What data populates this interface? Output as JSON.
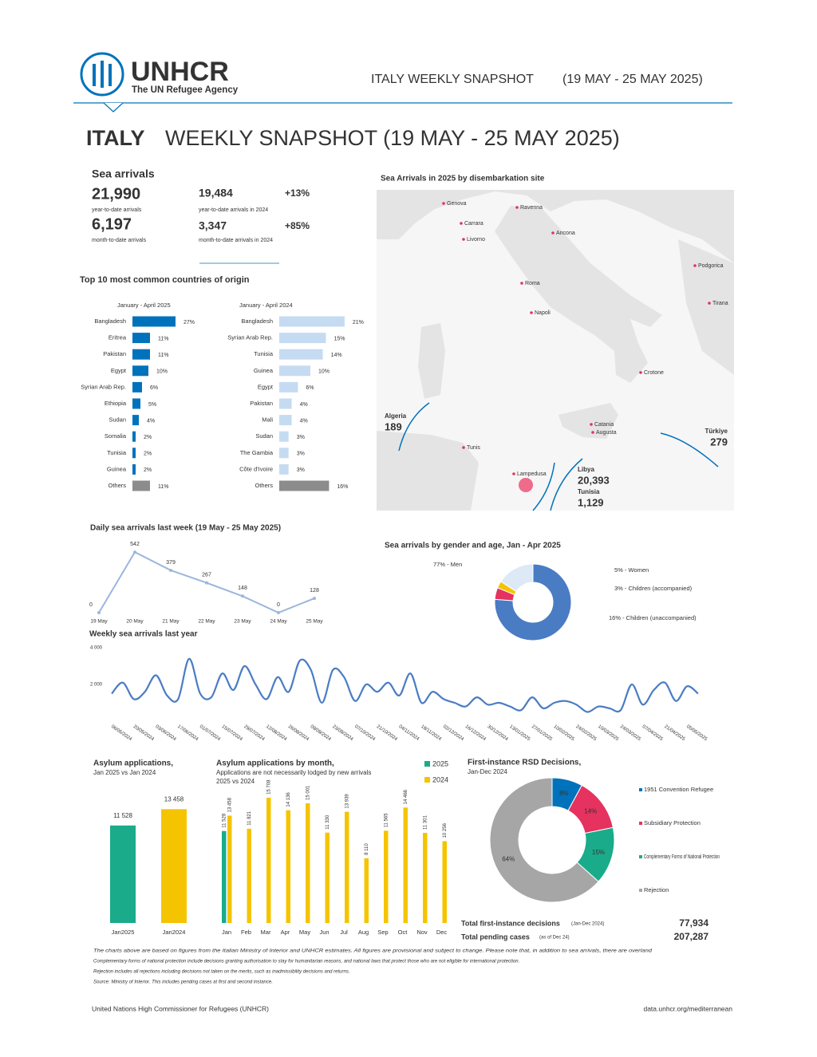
{
  "header": {
    "logo": "UNHCR",
    "logo_subtitle": "The UN Refugee Agency",
    "label": "ITALY WEEKLY SNAPSHOT",
    "dates": "(19 MAY - 25 MAY 2025)"
  },
  "title": {
    "country": "ITALY",
    "text": "WEEKLY SNAPSHOT (19 MAY - 25 MAY 2025)"
  },
  "sea_arrivals": {
    "title": "Sea arrivals",
    "ytd": "21,990",
    "ytd_label": "year-to-date arrivals",
    "ytd_2024": "19,484",
    "ytd_2024_label": "year-to-date arrivals in 2024",
    "ytd_change": "+13%",
    "mtd": "6,197",
    "mtd_label": "month-to-date arrivals",
    "mtd_2024": "3,347",
    "mtd_2024_label": "month-to-date arrivals in 2024",
    "mtd_change": "+85%"
  },
  "top10_title": "Top 10 most common countries of origin",
  "map": {
    "title": "Sea Arrivals in 2025 by disembarkation site",
    "places": [
      "Genova",
      "Ravenna",
      "Carrara",
      "Livorno",
      "Ancona",
      "Podgorica",
      "Roma",
      "Tirana",
      "Napoli",
      "Crotone",
      "Tunis",
      "Catania",
      "Augusta",
      "Lampedusa"
    ],
    "flows": [
      {
        "name": "Algeria",
        "value": "189"
      },
      {
        "name": "Türkiye",
        "value": "279"
      },
      {
        "name": "Libya",
        "value": "20,393"
      },
      {
        "name": "Tunisia",
        "value": "1,129"
      }
    ]
  },
  "chart_data": [
    {
      "type": "hbar",
      "subtitle": "January - April 2025",
      "categories": [
        "Bangladesh",
        "Eritrea",
        "Pakistan",
        "Egypt",
        "Syrian Arab Rep.",
        "Ethiopia",
        "Sudan",
        "Somalia",
        "Tunisia",
        "Guinea",
        "Others"
      ],
      "values": [
        27,
        11,
        11,
        10,
        6,
        5,
        4,
        2,
        2,
        2,
        11
      ],
      "value_labels": [
        "27%",
        "11%",
        "11%",
        "10%",
        "6%",
        "5%",
        "4%",
        "2%",
        "2%",
        "2%",
        "11%"
      ],
      "colors": [
        "#0072bc",
        "#0072bc",
        "#0072bc",
        "#0072bc",
        "#0072bc",
        "#0072bc",
        "#0072bc",
        "#0072bc",
        "#0072bc",
        "#0072bc",
        "#8c8c8c"
      ],
      "xlim": [
        0,
        30
      ]
    },
    {
      "type": "hbar",
      "subtitle": "January - April 2024",
      "categories": [
        "Bangladesh",
        "Syrian Arab Rep.",
        "Tunisia",
        "Guinea",
        "Egypt",
        "Pakistan",
        "Mali",
        "Sudan",
        "The Gambia",
        "Côte d'Ivoire",
        "Others"
      ],
      "values": [
        21,
        15,
        14,
        10,
        6,
        4,
        4,
        3,
        3,
        3,
        16
      ],
      "value_labels": [
        "21%",
        "15%",
        "14%",
        "10%",
        "6%",
        "4%",
        "4%",
        "3%",
        "3%",
        "3%",
        "16%"
      ],
      "colors": [
        "#c5dbf2",
        "#c5dbf2",
        "#c5dbf2",
        "#c5dbf2",
        "#c5dbf2",
        "#c5dbf2",
        "#c5dbf2",
        "#c5dbf2",
        "#c5dbf2",
        "#c5dbf2",
        "#8c8c8c"
      ],
      "xlim": [
        0,
        30
      ]
    },
    {
      "type": "line",
      "title": "Daily sea arrivals last week (19 May - 25 May 2025)",
      "categories": [
        "19 May",
        "20 May",
        "21 May",
        "22 May",
        "23 May",
        "24 May",
        "25 May"
      ],
      "values": [
        0,
        542,
        379,
        267,
        148,
        0,
        128
      ],
      "color": "#9bb7dc",
      "ylim": [
        0,
        600
      ]
    },
    {
      "type": "donut",
      "title": "Sea arrivals by gender and age, Jan - Apr 2025",
      "categories": [
        "77% - Men",
        "5% - Women",
        "3% - Children (accompanied)",
        "16% - Children (unaccompanied)"
      ],
      "values": [
        77,
        5,
        3,
        16
      ],
      "colors": [
        "#4a7cc4",
        "#e5325f",
        "#f5c400",
        "#dde9f7"
      ]
    },
    {
      "type": "line",
      "title": "Weekly sea arrivals last year",
      "categories": [
        "06/05/2024",
        null,
        "20/05/2024",
        null,
        "03/06/2024",
        null,
        "17/06/2024",
        null,
        "01/07/2024",
        null,
        "15/07/2024",
        null,
        "29/07/2024",
        null,
        "12/08/2024",
        null,
        "26/08/2024",
        null,
        "09/09/2024",
        null,
        "23/09/2024",
        null,
        "07/10/2024",
        null,
        "21/10/2024",
        null,
        "04/11/2024",
        null,
        "18/11/2024",
        null,
        "02/12/2024",
        null,
        "16/12/2024",
        null,
        "30/12/2024",
        null,
        "13/01/2025",
        null,
        "27/01/2025",
        null,
        "10/02/2025",
        null,
        "24/02/2025",
        null,
        "10/03/2025",
        null,
        "24/03/2025",
        null,
        "07/04/2025",
        null,
        "21/04/2025",
        null,
        "05/05/2025",
        null
      ],
      "values": [
        1500,
        2100,
        1200,
        1600,
        2500,
        1400,
        1200,
        3400,
        1500,
        1300,
        2600,
        1700,
        3000,
        2000,
        1200,
        2400,
        1600,
        3300,
        2800,
        1000,
        2800,
        2400,
        1100,
        2000,
        1600,
        2100,
        1400,
        2600,
        1000,
        1600,
        1200,
        1000,
        800,
        1300,
        900,
        1000,
        800,
        600,
        1300,
        700,
        1000,
        1100,
        900,
        500,
        800,
        700,
        600,
        2000,
        900,
        1700,
        2100,
        1100,
        1900,
        1500
      ],
      "color": "#4a7cc4",
      "ylim": [
        0,
        4000
      ],
      "yticks": [
        {
          "value": 2000,
          "label": "2 000"
        },
        {
          "value": 4000,
          "label": "4 000"
        }
      ]
    },
    {
      "type": "bar",
      "title": "Asylum applications,",
      "subtitle": "Jan 2025 vs Jan 2024",
      "categories": [
        "Jan2025",
        "Jan2024"
      ],
      "values": [
        11528,
        13458
      ],
      "value_labels": [
        "11 528",
        "13 458"
      ],
      "colors": [
        "#1aab8a",
        "#f5c400"
      ],
      "ylim": [
        0,
        15000
      ]
    },
    {
      "type": "grouped_bar",
      "title": "Asylum applications by month,",
      "subtitle": "Applications are not necessarily lodged by new arrivals",
      "subtitle2": "2025 vs 2024",
      "categories": [
        "Jan",
        "Feb",
        "Mar",
        "Apr",
        "May",
        "Jun",
        "Jul",
        "Aug",
        "Sep",
        "Oct",
        "Nov",
        "Dec"
      ],
      "series": [
        {
          "name": "2025",
          "color": "#1aab8a",
          "values": [
            11528,
            null,
            null,
            null,
            null,
            null,
            null,
            null,
            null,
            null,
            null,
            null
          ],
          "value_labels": [
            "11 528",
            null,
            null,
            null,
            null,
            null,
            null,
            null,
            null,
            null,
            null,
            null
          ]
        },
        {
          "name": "2024",
          "color": "#f5c400",
          "values": [
            13458,
            11821,
            15708,
            14136,
            15001,
            11330,
            13939,
            8110,
            11565,
            14466,
            11301,
            10256
          ],
          "value_labels": [
            "13 458",
            "11 821",
            "15 708",
            "14 136",
            "15 001",
            "11 330",
            "13 939",
            "8 110",
            "11 565",
            "14 466",
            "11 301",
            "10 256"
          ]
        }
      ],
      "ylim": [
        0,
        16000
      ]
    },
    {
      "type": "donut",
      "title": "First-instance RSD Decisions,",
      "subtitle": "Jan-Dec 2024",
      "categories": [
        "1951 Convention Refugee",
        "Subsidiary Protection",
        "Complementary Forms of National Protection",
        "Rejection"
      ],
      "values": [
        8,
        14,
        15,
        64
      ],
      "value_labels": [
        "8%",
        "14%",
        "15%",
        "64%"
      ],
      "colors": [
        "#0072bc",
        "#e5325f",
        "#1aab8a",
        "#a6a6a6"
      ]
    }
  ],
  "totals": [
    {
      "label": "Total first-instance decisions",
      "note": "(Jan-Dec 2024)",
      "value": "77,934"
    },
    {
      "label": "Total pending cases",
      "note": "(as of Dec 24)",
      "value": "207,287"
    }
  ],
  "footnotes": [
    "The charts above are based on figures from the Italian Ministry of Interior and UNHCR estimates. All figures are provisional and subject to change. Please note that, in addition to sea arrivals, there are overland",
    "Complementary forms of national protection include decisions granting authorisation to stay for humanitarian reasons, and national laws that protect those who are not eligible for international protection.",
    "Rejection includes all rejections including decisions not taken on the merits, such as inadmissibility decisions and returns.",
    "Source: Ministry of Interior. This includes pending cases at first and second instance."
  ],
  "footer": {
    "left": "United Nations High Commissioner for Refugees (UNHCR)",
    "right": "data.unhcr.org/mediterranean"
  }
}
